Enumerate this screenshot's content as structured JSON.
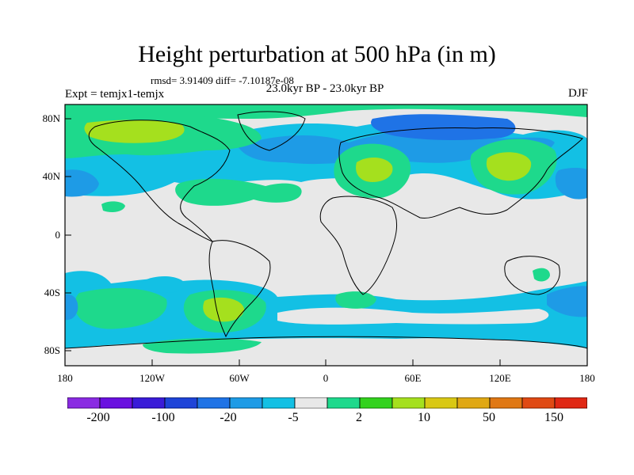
{
  "title": "Height perturbation at 500 hPa (in m)",
  "stats": "rmsd= 3.91409 diff= -7.10187e-08",
  "experiment": "Expt = temjx1-temjx",
  "period": "23.0kyr BP - 23.0kyr BP",
  "season": "DJF",
  "y_ticks": [
    "80N",
    "40N",
    "0",
    "40S",
    "80S"
  ],
  "x_ticks": [
    "180",
    "120W",
    "60W",
    "0",
    "60E",
    "120E",
    "180"
  ],
  "colorbar": {
    "colors": [
      "#8a2be2",
      "#6a10e0",
      "#3a1cd8",
      "#1e44d8",
      "#1f73e6",
      "#1e9be6",
      "#13c0e4",
      "#e8e8e8",
      "#1ed98c",
      "#33d21e",
      "#a5e01e",
      "#d9c814",
      "#e0a814",
      "#e07814",
      "#e04a14",
      "#e02814"
    ],
    "labels": [
      "-200",
      "-100",
      "-20",
      "-5",
      "2",
      "10",
      "50",
      "150"
    ]
  },
  "palette": {
    "background": "#e8e8e8",
    "blue_light": "#13c0e4",
    "blue_mid": "#1e9be6",
    "blue_dark": "#1f73e6",
    "green": "#1ed98c",
    "yellow_green": "#a5e01e"
  }
}
